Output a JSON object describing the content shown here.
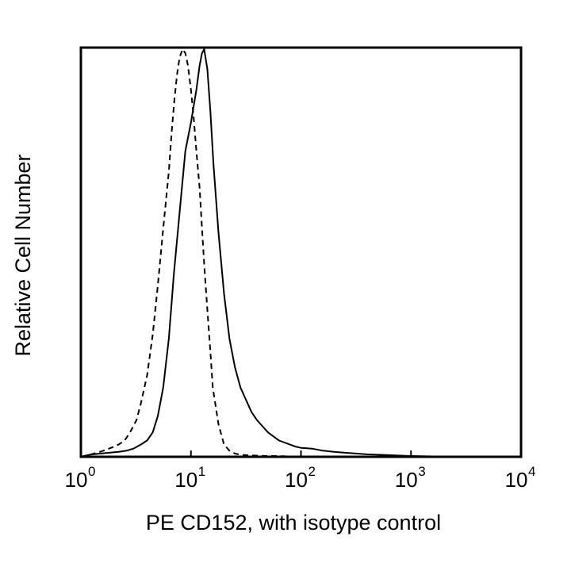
{
  "chart_data": {
    "type": "line",
    "title": "",
    "xlabel": "PE CD152, with isotype control",
    "ylabel": "Relative Cell Number",
    "x_scale": "log",
    "xlim": [
      1,
      10000
    ],
    "ylim": [
      0,
      100
    ],
    "grid": false,
    "legend": "none",
    "x_ticks": [
      {
        "base": "10",
        "exp": "0"
      },
      {
        "base": "10",
        "exp": "1"
      },
      {
        "base": "10",
        "exp": "2"
      },
      {
        "base": "10",
        "exp": "3"
      },
      {
        "base": "10",
        "exp": "4"
      }
    ],
    "series": [
      {
        "style": "solid",
        "color": "#000000",
        "x": [
          1.0,
          1.2,
          1.5,
          1.8,
          2.2,
          2.6,
          3.0,
          3.5,
          4.0,
          4.5,
          5.0,
          5.6,
          6.3,
          7.0,
          7.9,
          8.9,
          10.0,
          11.2,
          12.0,
          12.6,
          13.2,
          14.1,
          15.0,
          16.0,
          17.8,
          20.0,
          22.4,
          25.1,
          28.2,
          31.6,
          35.5,
          39.8,
          44.7,
          50.1,
          56.2,
          63.1,
          70.8,
          79.4,
          89.1,
          100,
          125.9,
          158.5,
          199.5,
          251.2,
          316.2,
          398.1,
          501.2,
          631,
          794.3,
          1000,
          1585,
          2512,
          3981,
          6310,
          10000
        ],
        "y": [
          0,
          0.5,
          0.8,
          1,
          1.2,
          1.5,
          2,
          3,
          4,
          6,
          10,
          17,
          29,
          45,
          60,
          75,
          82,
          90,
          96,
          99,
          100,
          95,
          85,
          72,
          55,
          40,
          29,
          22,
          17,
          14,
          11,
          9,
          7.5,
          6,
          5,
          4,
          3.5,
          3,
          2.5,
          2.2,
          2,
          1.5,
          1.2,
          1,
          0.8,
          0.6,
          0.5,
          0.4,
          0.3,
          0.2,
          0.1,
          0.1,
          0,
          0,
          0
        ]
      },
      {
        "style": "dashed",
        "color": "#000000",
        "x": [
          1.0,
          1.2,
          1.4,
          1.6,
          1.8,
          2.0,
          2.2,
          2.5,
          2.8,
          3.2,
          3.5,
          4.0,
          4.5,
          5.0,
          5.6,
          6.3,
          6.7,
          7.1,
          7.5,
          7.9,
          8.4,
          8.9,
          9.4,
          10.0,
          10.6,
          11.2,
          12.0,
          12.6,
          13.3,
          14.1,
          15.0,
          15.8,
          17.8,
          20.0,
          22.4,
          25.1,
          28.2,
          31.6,
          39.8,
          50.1,
          63.1,
          79.4,
          100,
          125.9,
          158.5,
          251.2,
          398.1,
          631,
          1000,
          10000
        ],
        "y": [
          0,
          0.5,
          1,
          1.5,
          2,
          2.5,
          3,
          4,
          6,
          9,
          13,
          20,
          30,
          42,
          56,
          70,
          80,
          88,
          94,
          98,
          100,
          99,
          96,
          90,
          83,
          75,
          66,
          56,
          46,
          36,
          26,
          17,
          8,
          3,
          1.5,
          0.8,
          0.5,
          0.4,
          0.3,
          0.2,
          0.2,
          0.1,
          0.1,
          0,
          0,
          0,
          0,
          0,
          0,
          0
        ]
      }
    ]
  }
}
